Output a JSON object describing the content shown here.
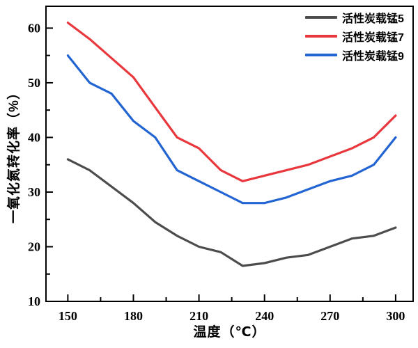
{
  "figure": {
    "background": "#ffffff",
    "frame_color": "#000000"
  },
  "chart_data": {
    "type": "line",
    "title": "",
    "xlabel": "温度（℃）",
    "ylabel": "一氧化氮转化率（%）",
    "xlim": [
      140,
      308
    ],
    "ylim": [
      10,
      64
    ],
    "grid": false,
    "legend_position": "top-right-inside",
    "x_ticks": [
      150,
      180,
      210,
      240,
      270,
      300
    ],
    "x_minor_ticks": [
      165,
      195,
      225,
      255,
      285
    ],
    "y_ticks": [
      10,
      20,
      30,
      40,
      50,
      60
    ],
    "y_minor_ticks": [
      15,
      25,
      35,
      45,
      55
    ],
    "x": [
      150,
      160,
      170,
      180,
      190,
      200,
      210,
      220,
      230,
      240,
      250,
      260,
      270,
      280,
      290,
      300
    ],
    "series": [
      {
        "name": "活性炭载锰5",
        "color": "#4c4c4c",
        "values": [
          36,
          34,
          31,
          28,
          24.5,
          22,
          20,
          19,
          16.5,
          17,
          18,
          18.5,
          20,
          21.5,
          22,
          23.5
        ]
      },
      {
        "name": "活性炭载锰7",
        "color": "#e8383d",
        "values": [
          61,
          58,
          54.5,
          51,
          45.5,
          40,
          38,
          34,
          32,
          33,
          34,
          35,
          36.5,
          38,
          40,
          44
        ]
      },
      {
        "name": "活性炭载锰9",
        "color": "#2164d2",
        "values": [
          55,
          50,
          48,
          43,
          40,
          34,
          32,
          30,
          28,
          28,
          29,
          30.5,
          32,
          33,
          35,
          40
        ]
      }
    ]
  }
}
